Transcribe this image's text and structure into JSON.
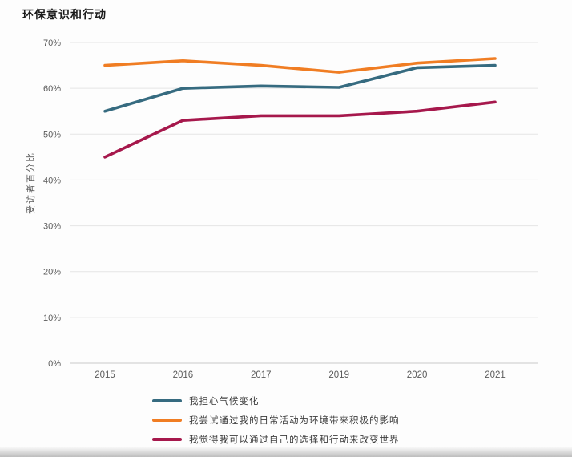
{
  "chart_data": {
    "type": "line",
    "title": "环保意识和行动",
    "xlabel": "",
    "ylabel": "受访者百分比",
    "categories": [
      "2015",
      "2016",
      "2017",
      "2019",
      "2020",
      "2021"
    ],
    "series": [
      {
        "name": "我担心气候变化",
        "color": "#366B80",
        "values": [
          55,
          60,
          60.5,
          60.2,
          64.5,
          65
        ]
      },
      {
        "name": "我尝试通过我的日常活动为环境带来积极的影响",
        "color": "#F07D23",
        "values": [
          65,
          66,
          65,
          63.5,
          65.5,
          66.5
        ]
      },
      {
        "name": "我觉得我可以通过自己的选择和行动来改变世界",
        "color": "#A6184C",
        "values": [
          45,
          53,
          54,
          54,
          55,
          57
        ]
      }
    ],
    "y_ticks": [
      {
        "value": 0,
        "label": "0%"
      },
      {
        "value": 10,
        "label": "10%"
      },
      {
        "value": 20,
        "label": "20%"
      },
      {
        "value": 30,
        "label": "30%"
      },
      {
        "value": 40,
        "label": "40%"
      },
      {
        "value": 50,
        "label": "50%"
      },
      {
        "value": 60,
        "label": "60%"
      },
      {
        "value": 70,
        "label": "70%"
      }
    ],
    "ylim": [
      0,
      70
    ],
    "grid": true,
    "legend_position": "bottom-left"
  },
  "style_colors": {
    "background": "#FDFDFD",
    "gridline": "#E5E5E5",
    "axis_line": "#C9C9C9",
    "tick_text": "#5A5A5A",
    "title_text": "#1A1A1A",
    "legend_text": "#3C3C3C"
  }
}
